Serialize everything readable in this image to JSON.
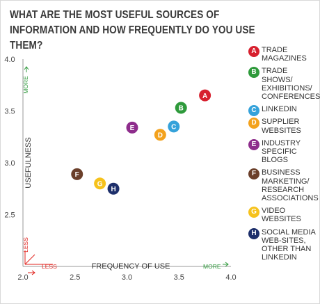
{
  "title": "WHAT ARE THE MOST USEFUL SOURCES OF INFORMATION AND HOW FREQUENTLY DO YOU USE THEM?",
  "chart_data": {
    "type": "scatter",
    "xlabel": "FREQUENCY OF USE",
    "ylabel": "USEFULNESS",
    "xlim": [
      2.0,
      4.0
    ],
    "ylim": [
      2.0,
      4.0
    ],
    "x_ticks": [
      "2.0",
      "2.5",
      "3.0",
      "3.5",
      "4.0"
    ],
    "y_ticks": [
      "2.0",
      "2.5",
      "3.0",
      "3.5",
      "4.0"
    ],
    "x_notes": {
      "less": "LESS",
      "more": "MORE"
    },
    "y_notes": {
      "less": "LESS",
      "more": "MORE"
    },
    "grid": false,
    "legend_position": "right",
    "points": [
      {
        "letter": "A",
        "label": "TRADE MAGAZINES",
        "x": 3.75,
        "y": 3.65,
        "color": "#d7202e"
      },
      {
        "letter": "B",
        "label": "TRADE SHOWS/ EXHIBITIONS/ CONFERENCES",
        "x": 3.52,
        "y": 3.53,
        "color": "#2e9a3b"
      },
      {
        "letter": "C",
        "label": "LINKEDIN",
        "x": 3.45,
        "y": 3.35,
        "color": "#35a2da"
      },
      {
        "letter": "D",
        "label": "SUPPLIER WEBSITES",
        "x": 3.32,
        "y": 3.27,
        "color": "#f3a21d"
      },
      {
        "letter": "E",
        "label": "INDUSTRY SPECIFIC BLOGS",
        "x": 3.05,
        "y": 3.34,
        "color": "#8e2d8c"
      },
      {
        "letter": "F",
        "label": "BUSINESS MARKETING/ RESEARCH ASSOCIATIONS",
        "x": 2.52,
        "y": 2.89,
        "color": "#6b3f2a"
      },
      {
        "letter": "G",
        "label": "VIDEO WEBSITES",
        "x": 2.74,
        "y": 2.8,
        "color": "#f6c21c"
      },
      {
        "letter": "H",
        "label": "SOCIAL MEDIA WEB-SITES, OTHER THAN LINKEDIN",
        "x": 2.87,
        "y": 2.75,
        "color": "#1d2f6b"
      }
    ]
  },
  "colors": {
    "less": "#e0201b",
    "more": "#2f9a3c",
    "axis": "#999999",
    "text": "#333333"
  }
}
